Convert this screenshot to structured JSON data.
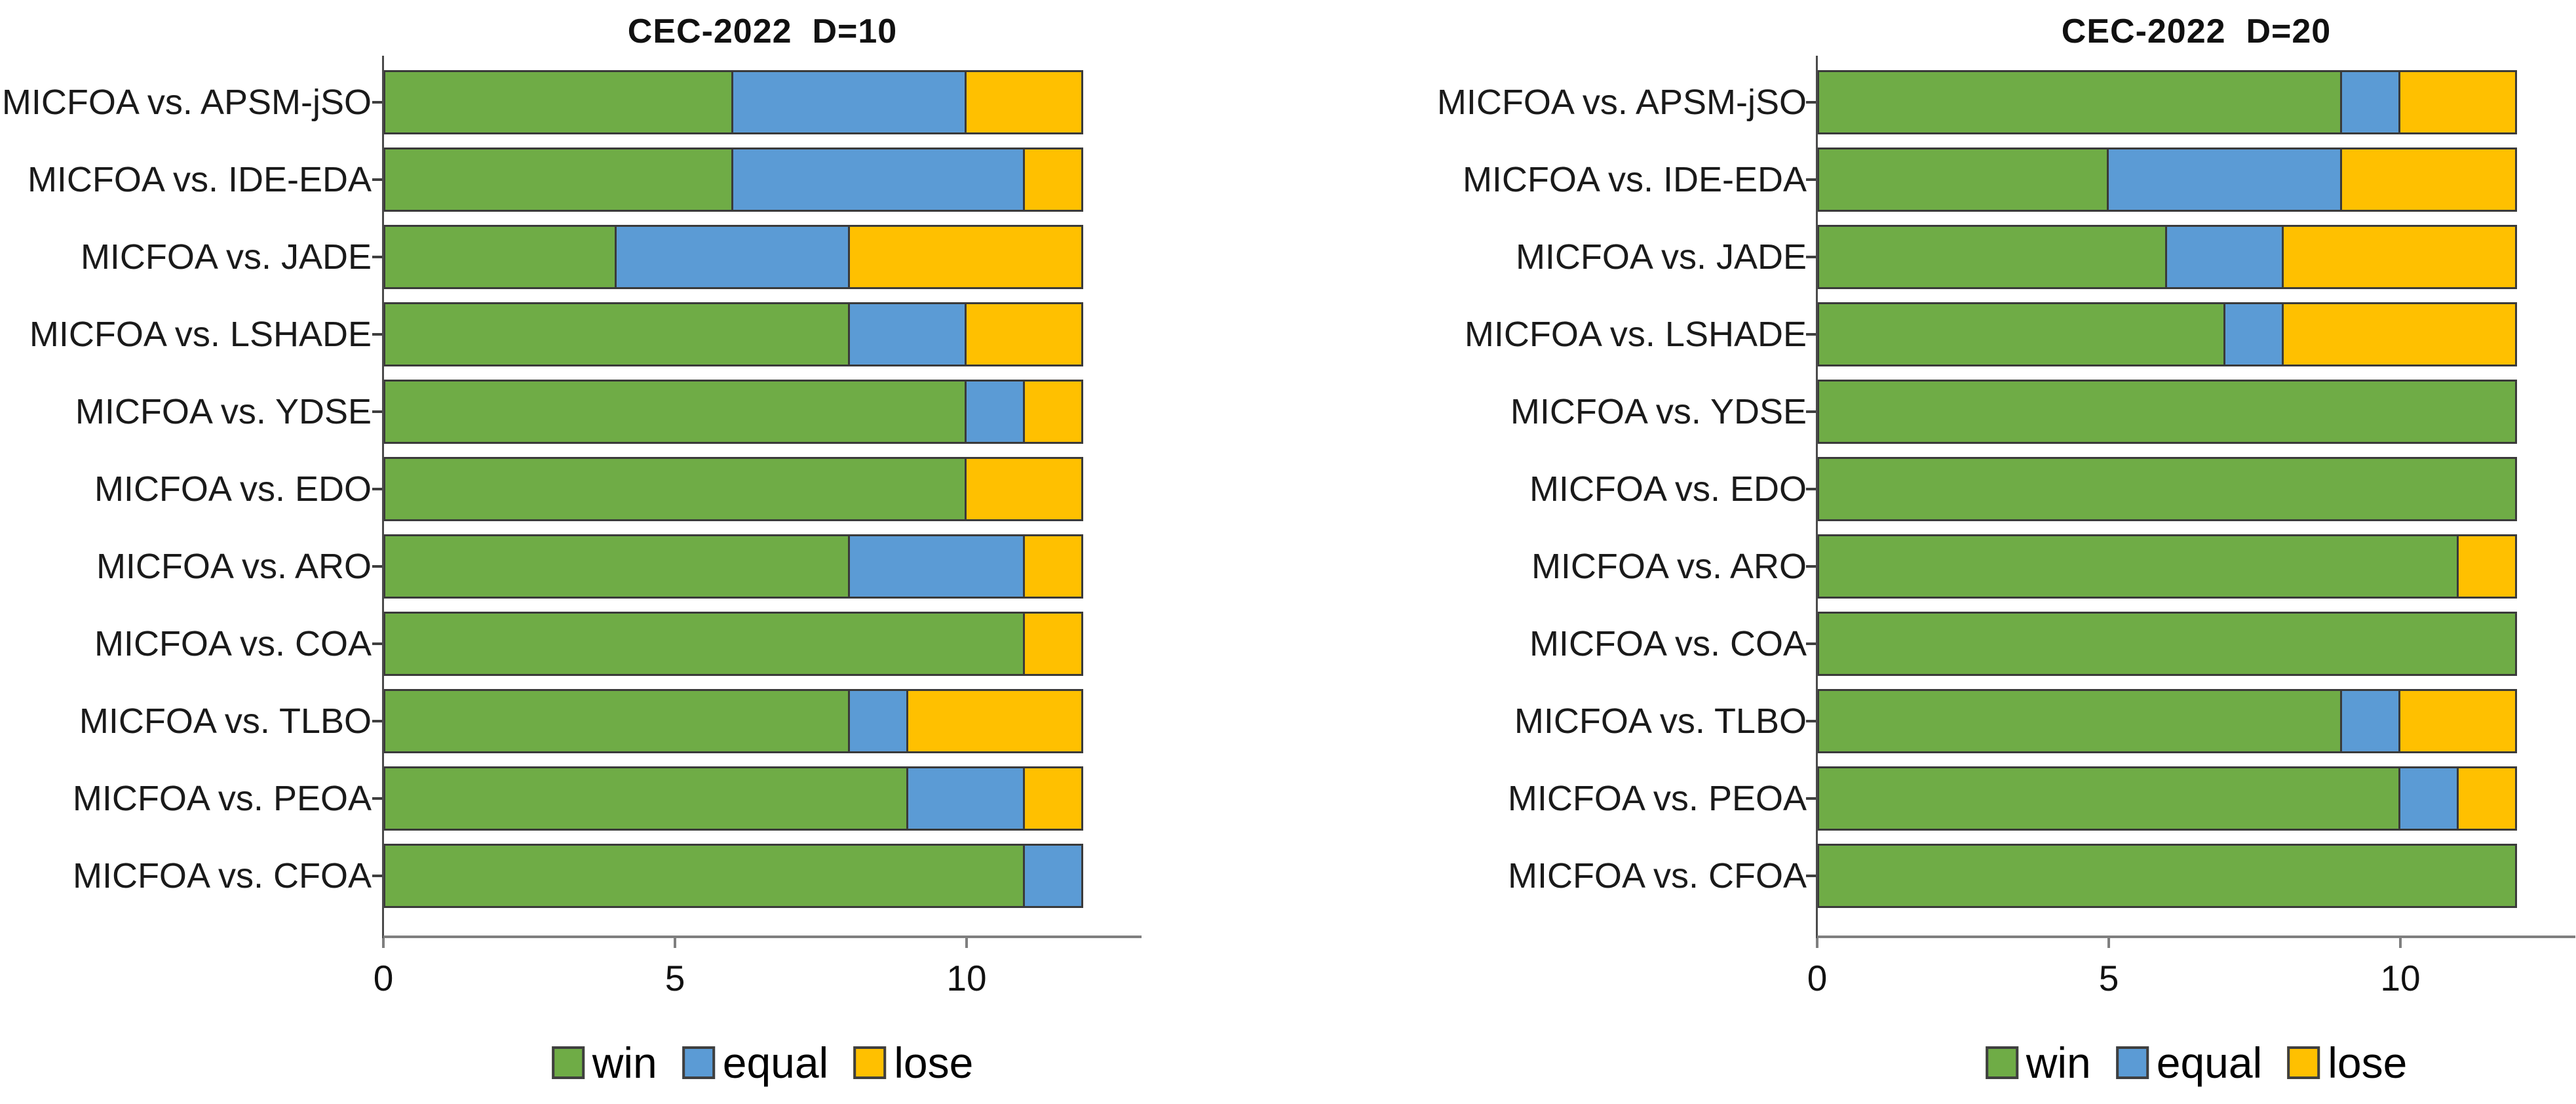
{
  "figure": {
    "colors": {
      "win": "#6FAC46",
      "equal": "#5B9BD5",
      "lose": "#FFC000",
      "bar_border": "#3A3A3A",
      "x_axis": "#7F7F7F",
      "y_axis": "#4A4A4A",
      "text": "#111111",
      "background": "#FFFFFF"
    }
  },
  "chart_data": [
    {
      "type": "bar",
      "orientation": "horizontal",
      "stacked": true,
      "title": "CEC-2022  D=10",
      "categories": [
        "MICFOA vs. APSM-jSO",
        "MICFOA vs. IDE-EDA",
        "MICFOA vs. JADE",
        "MICFOA vs. LSHADE",
        "MICFOA vs. YDSE",
        "MICFOA vs. EDO",
        "MICFOA vs. ARO",
        "MICFOA vs. COA",
        "MICFOA vs. TLBO",
        "MICFOA vs. PEOA",
        "MICFOA vs. CFOA"
      ],
      "series": [
        {
          "name": "win",
          "values": [
            6,
            6,
            4,
            8,
            10,
            10,
            8,
            11,
            8,
            9,
            11
          ]
        },
        {
          "name": "equal",
          "values": [
            4,
            5,
            4,
            2,
            1,
            0,
            3,
            0,
            1,
            2,
            1
          ]
        },
        {
          "name": "lose",
          "values": [
            2,
            1,
            4,
            2,
            1,
            2,
            1,
            1,
            3,
            1,
            0
          ]
        }
      ],
      "bar_total": 12,
      "xlim": [
        0,
        13
      ],
      "xticks": [
        0,
        5,
        10
      ],
      "xtick_labels": [
        "0",
        "5",
        "10"
      ],
      "legend": [
        "win",
        "equal",
        "lose"
      ],
      "legend_position": "below",
      "grid": false
    },
    {
      "type": "bar",
      "orientation": "horizontal",
      "stacked": true,
      "title": "CEC-2022  D=20",
      "categories": [
        "MICFOA vs. APSM-jSO",
        "MICFOA vs. IDE-EDA",
        "MICFOA vs. JADE",
        "MICFOA vs. LSHADE",
        "MICFOA vs. YDSE",
        "MICFOA vs. EDO",
        "MICFOA vs. ARO",
        "MICFOA vs. COA",
        "MICFOA vs. TLBO",
        "MICFOA vs. PEOA",
        "MICFOA vs. CFOA"
      ],
      "series": [
        {
          "name": "win",
          "values": [
            9,
            5,
            6,
            7,
            12,
            12,
            11,
            12,
            9,
            10,
            12
          ]
        },
        {
          "name": "equal",
          "values": [
            1,
            4,
            2,
            1,
            0,
            0,
            0,
            0,
            1,
            1,
            0
          ]
        },
        {
          "name": "lose",
          "values": [
            2,
            3,
            4,
            4,
            0,
            0,
            1,
            0,
            2,
            1,
            0
          ]
        }
      ],
      "bar_total": 12,
      "xlim": [
        0,
        13
      ],
      "xticks": [
        0,
        5,
        10
      ],
      "xtick_labels": [
        "0",
        "5",
        "10"
      ],
      "legend": [
        "win",
        "equal",
        "lose"
      ],
      "legend_position": "below",
      "grid": false
    }
  ]
}
